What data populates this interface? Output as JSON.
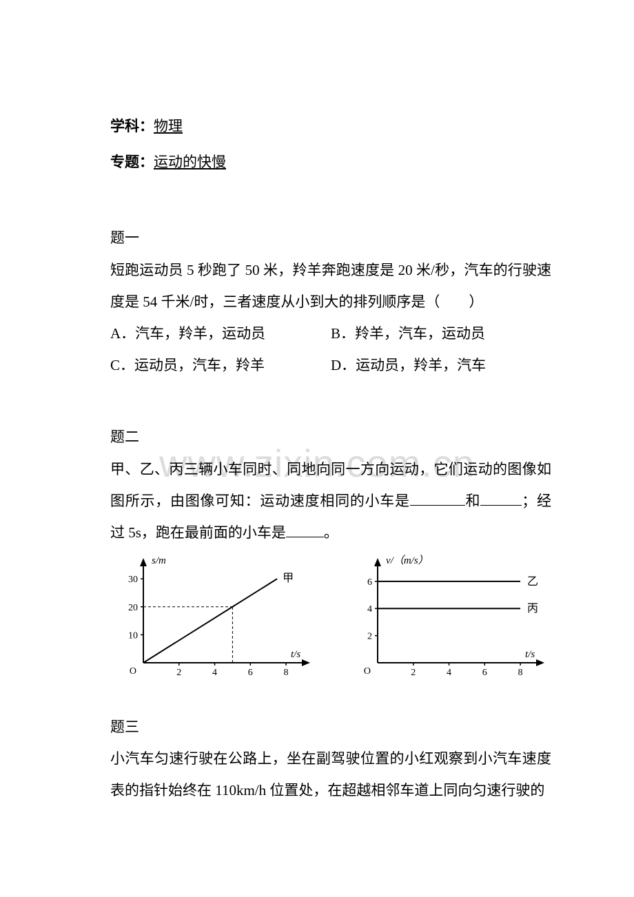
{
  "header": {
    "subject_label": "学科：",
    "subject_value": "物理",
    "topic_label": "专题：",
    "topic_value": "运动的快慢"
  },
  "watermark": "www.zixin.com.cn",
  "q1": {
    "label": "题一",
    "body": "短跑运动员 5 秒跑了 50 米，羚羊奔跑速度是 20 米/秒，汽车的行驶速度是 54 千米/时，三者速度从小到大的排列顺序是（　　）",
    "optA": "A．汽车，羚羊，运动员",
    "optB": "B．羚羊，汽车，运动员",
    "optC": "C．运动员，汽车，羚羊",
    "optD": "D．运动员，羚羊，汽车"
  },
  "q2": {
    "label": "题二",
    "body_pre": "甲、乙、丙三辆小车同时、同地向同一方向运动，它们运动的图像如图所示，由图像可知：运动速度相同的小车是",
    "body_mid1": "和",
    "body_mid2": "；经过 5s，跑在最前面的小车是",
    "body_end": "。",
    "chart1": {
      "type": "line",
      "ylabel": "s/m",
      "xlabel": "t/s",
      "series_label": "甲",
      "yticks": [
        10,
        20,
        30
      ],
      "xticks": [
        2,
        4,
        6,
        8
      ],
      "line_points": [
        [
          0,
          0
        ],
        [
          5,
          20
        ],
        [
          7.5,
          30
        ]
      ],
      "dash_x": 5,
      "dash_y": 20,
      "axis_color": "#000000",
      "grid_color": "#000000",
      "background_color": "#ffffff",
      "line_width": 2,
      "font_size": 14,
      "italic_labels": true
    },
    "chart2": {
      "type": "line",
      "ylabel": "v/（m/s）",
      "xlabel": "t/s",
      "yticks": [
        2,
        4,
        6
      ],
      "xticks": [
        2,
        4,
        6,
        8
      ],
      "series": [
        {
          "label": "乙",
          "y": 6
        },
        {
          "label": "丙",
          "y": 4
        }
      ],
      "axis_color": "#000000",
      "background_color": "#ffffff",
      "line_width": 2,
      "font_size": 14,
      "italic_labels": true
    }
  },
  "q3": {
    "label": "题三",
    "body": "小汽车匀速行驶在公路上，坐在副驾驶位置的小红观察到小汽车速度表的指针始终在 110km/h 位置处，在超越相邻车道上同向匀速行驶的"
  }
}
